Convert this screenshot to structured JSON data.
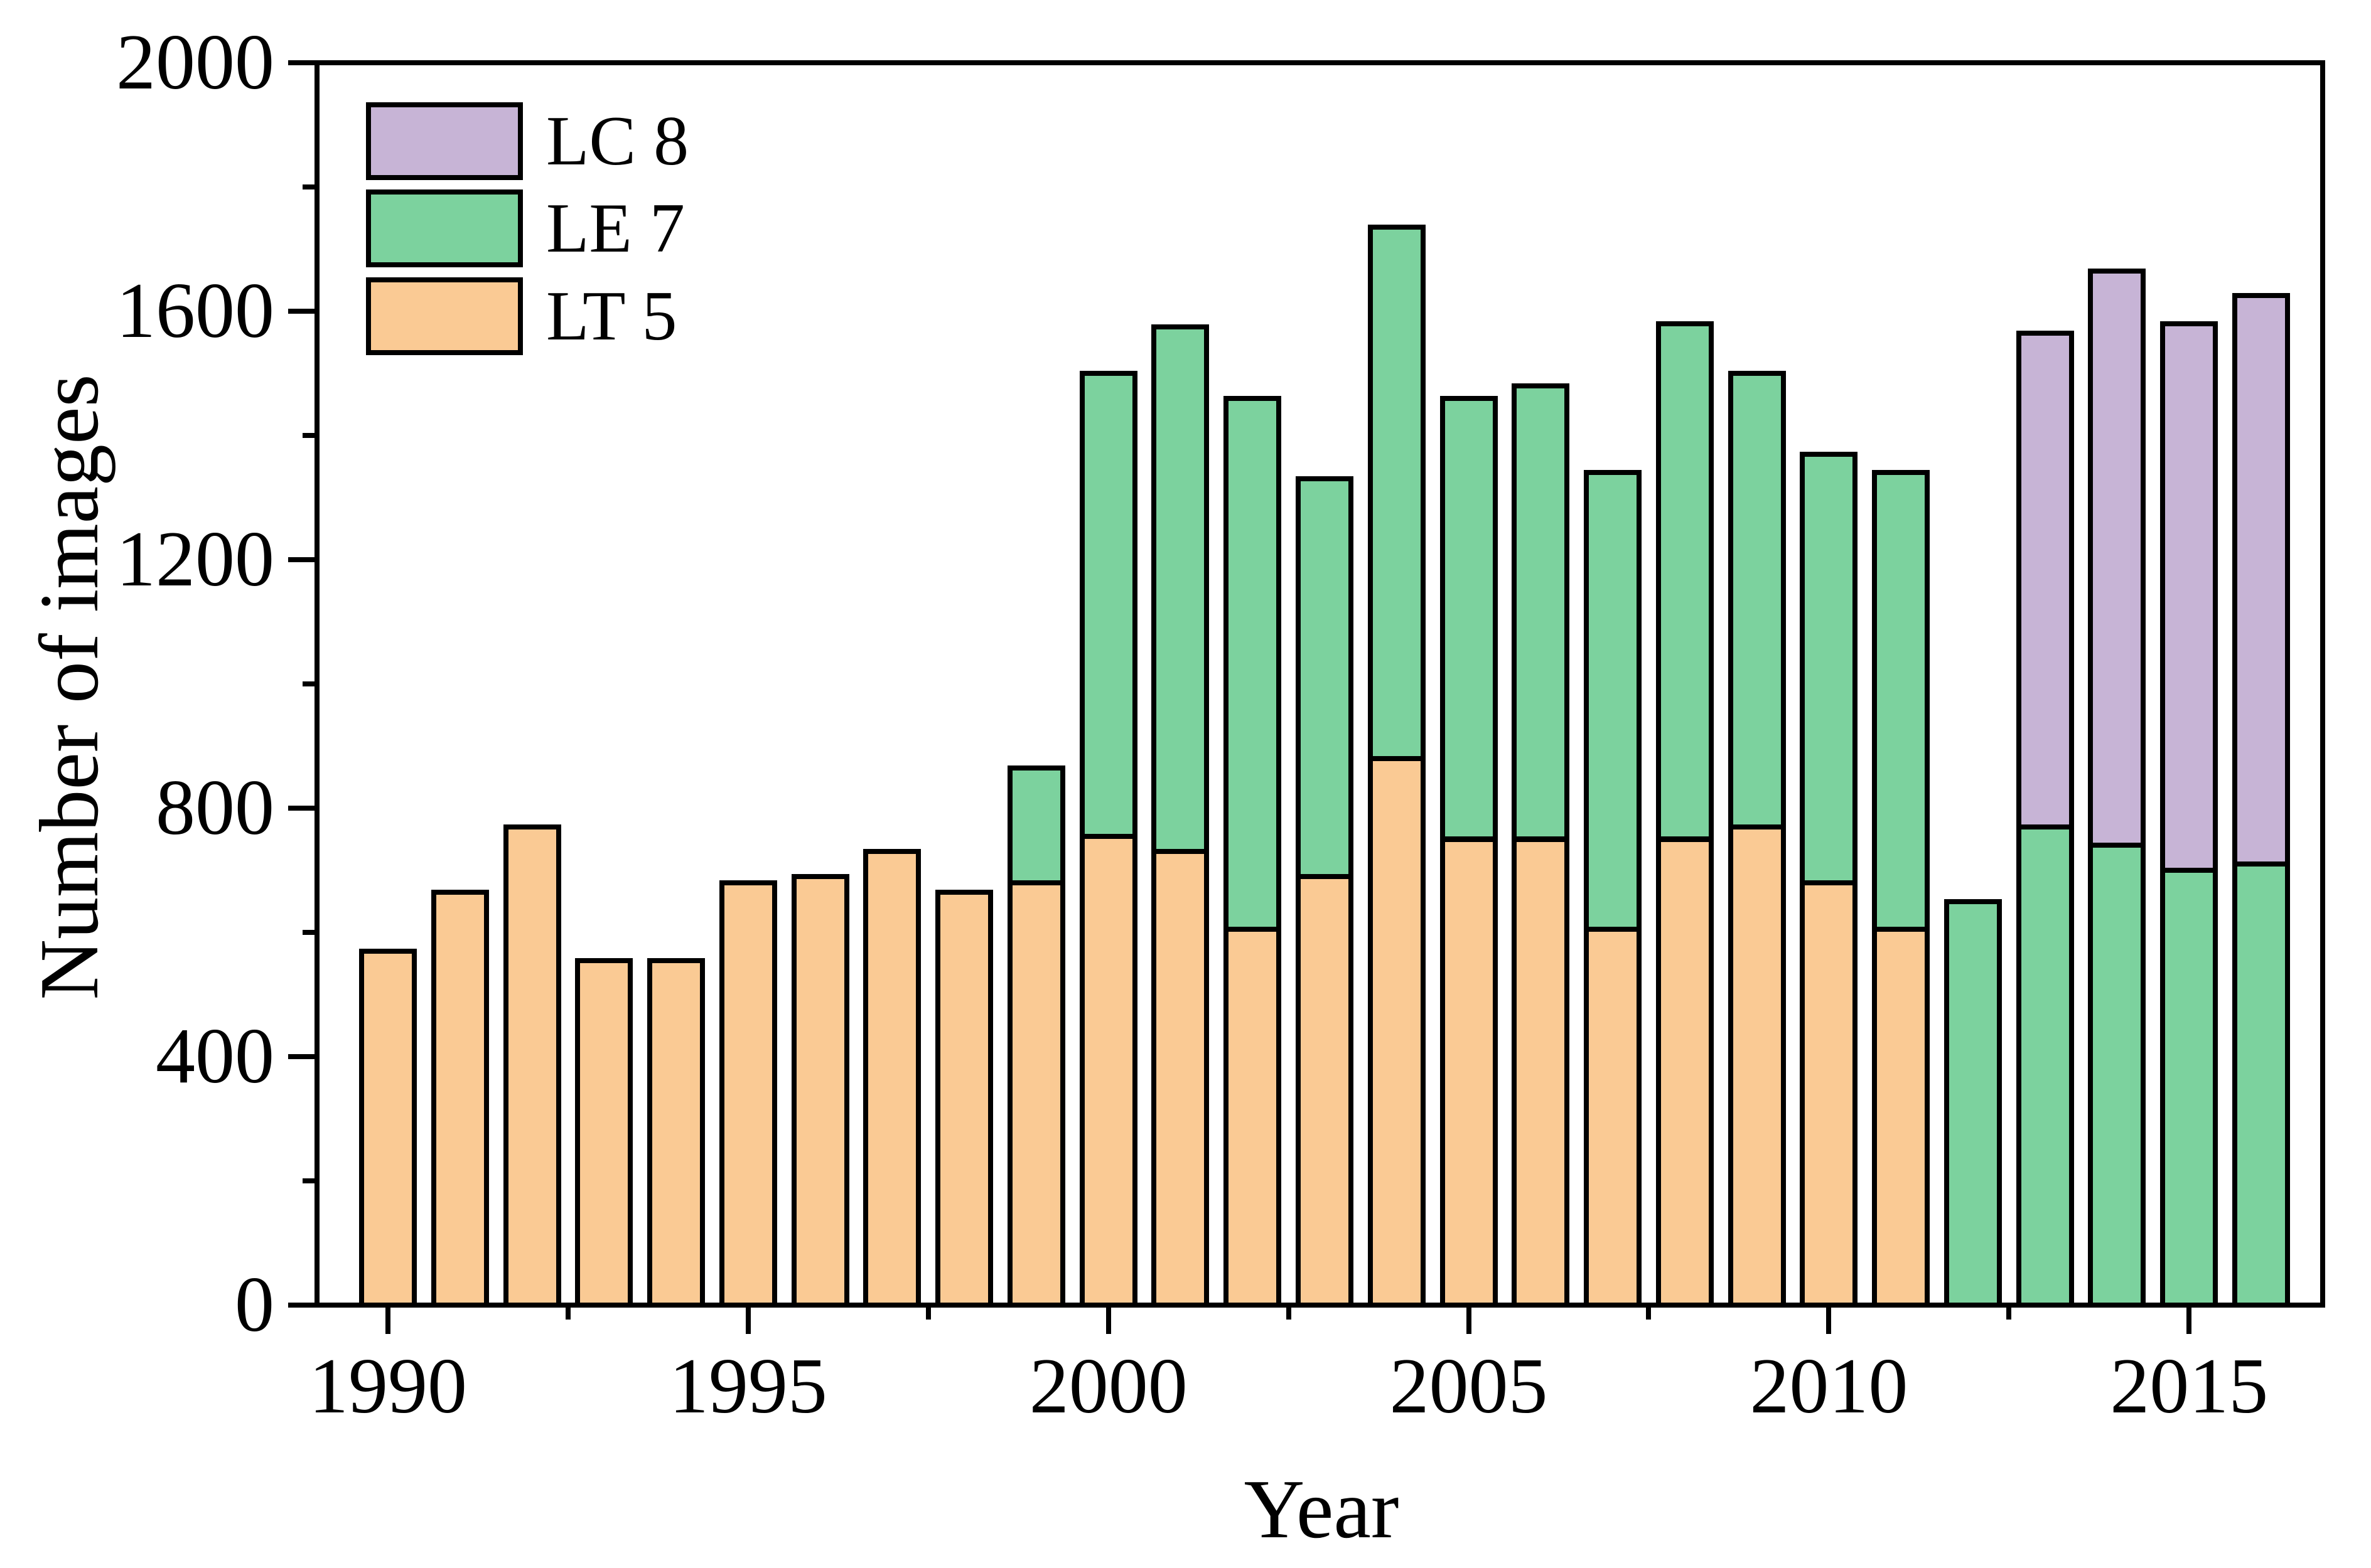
{
  "figure": {
    "background": "#FFFFFF",
    "axis_color": "#000000"
  },
  "chart_data": {
    "type": "bar",
    "stacked": true,
    "title": "",
    "xlabel": "Year",
    "ylabel": "Number of images",
    "ylim": [
      0,
      2000
    ],
    "xlim_years": [
      1990,
      2016
    ],
    "grid": false,
    "legend_position": "top-left-inside",
    "yticks_major": [
      0,
      400,
      800,
      1200,
      1600,
      2000
    ],
    "yticks_minor": [
      200,
      600,
      1000,
      1400,
      1800
    ],
    "xticks_major": [
      1990,
      1995,
      2000,
      2005,
      2010,
      2015
    ],
    "xticks_minor": [
      1992.5,
      1997.5,
      2002.5,
      2007.5,
      2012.5
    ],
    "categories": [
      1990,
      1991,
      1992,
      1993,
      1994,
      1995,
      1996,
      1997,
      1998,
      1999,
      2000,
      2001,
      2002,
      2003,
      2004,
      2005,
      2006,
      2007,
      2008,
      2009,
      2010,
      2011,
      2012,
      2013,
      2014,
      2015,
      2016
    ],
    "series": [
      {
        "name": "LT 5",
        "color": "#FACA94",
        "values": [
          570,
          665,
          770,
          555,
          555,
          680,
          690,
          730,
          665,
          680,
          755,
          730,
          605,
          690,
          880,
          750,
          750,
          605,
          750,
          770,
          680,
          605,
          0,
          0,
          0,
          0,
          0
        ]
      },
      {
        "name": "LE 7",
        "color": "#7CD29E",
        "values": [
          0,
          0,
          0,
          0,
          0,
          0,
          0,
          0,
          0,
          185,
          745,
          845,
          855,
          640,
          855,
          710,
          730,
          735,
          830,
          730,
          690,
          735,
          650,
          770,
          740,
          700,
          710
        ]
      },
      {
        "name": "LC 8",
        "color": "#C7B4D6",
        "values": [
          0,
          0,
          0,
          0,
          0,
          0,
          0,
          0,
          0,
          0,
          0,
          0,
          0,
          0,
          0,
          0,
          0,
          0,
          0,
          0,
          0,
          0,
          0,
          795,
          925,
          880,
          915
        ]
      }
    ],
    "legend": [
      {
        "label": "LC 8",
        "color": "#C7B4D6"
      },
      {
        "label": "LE 7",
        "color": "#7CD29E"
      },
      {
        "label": "LT 5",
        "color": "#FACA94"
      }
    ]
  }
}
